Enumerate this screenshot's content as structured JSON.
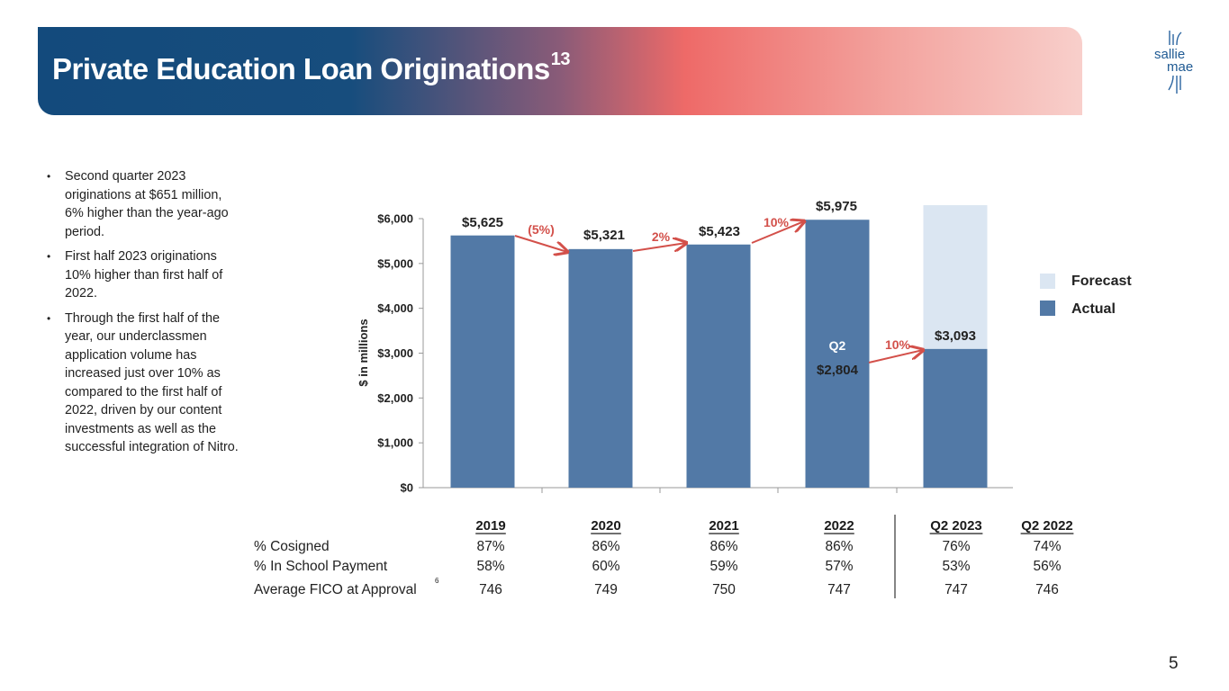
{
  "header": {
    "title": "Private Education Loan Originations",
    "title_sup": "13"
  },
  "logo": {
    "line1": "sallie",
    "line2": "mae",
    "mark": "·"
  },
  "bullets": [
    "Second quarter 2023 originations at $651 million, 6% higher than the year-ago period.",
    "First half 2023 originations 10% higher than first half of 2022.",
    "Through the first half of the year, our underclassmen application volume has increased just over 10% as compared to the first half of 2022, driven by our content investments as well as the successful integration of Nitro."
  ],
  "chart_data": {
    "type": "bar",
    "ylabel": "$ in millions",
    "ylim": [
      0,
      6000
    ],
    "yticks": [
      "$0",
      "$1,000",
      "$2,000",
      "$3,000",
      "$4,000",
      "$5,000",
      "$6,000"
    ],
    "ytick_values": [
      0,
      1000,
      2000,
      3000,
      4000,
      5000,
      6000
    ],
    "categories": [
      "2019",
      "2020",
      "2021",
      "2022",
      "2023"
    ],
    "series": [
      {
        "name": "Actual",
        "values": [
          5625,
          5321,
          5423,
          5975,
          3093
        ]
      },
      {
        "name": "Forecast",
        "values": [
          null,
          null,
          null,
          null,
          6300
        ]
      }
    ],
    "bar_labels": [
      "$5,625",
      "$5,321",
      "$5,423",
      "$5,975",
      "$3,093"
    ],
    "growth_labels": [
      "(5%)",
      "2%",
      "10%",
      "10%"
    ],
    "q2_annotation": {
      "label": "Q2",
      "value": 2804,
      "value_label": "$2,804"
    },
    "legend": [
      "Forecast",
      "Actual"
    ],
    "legend_position": "right",
    "colors": {
      "actual": "#5279a6",
      "forecast": "#dbe6f2",
      "arrow": "#d3504a",
      "axis": "#999999"
    }
  },
  "table": {
    "columns": [
      "2019",
      "2020",
      "2021",
      "2022",
      "Q2 2023",
      "Q2 2022"
    ],
    "rows": [
      {
        "label": "% Cosigned",
        "values": [
          "87%",
          "86%",
          "86%",
          "86%",
          "76%",
          "74%"
        ]
      },
      {
        "label": "% In School Payment",
        "values": [
          "58%",
          "60%",
          "59%",
          "57%",
          "53%",
          "56%"
        ]
      },
      {
        "label": "Average FICO at Approval",
        "sup": "6",
        "values": [
          "746",
          "749",
          "750",
          "747",
          "747",
          "746"
        ]
      }
    ]
  },
  "page_number": "5"
}
